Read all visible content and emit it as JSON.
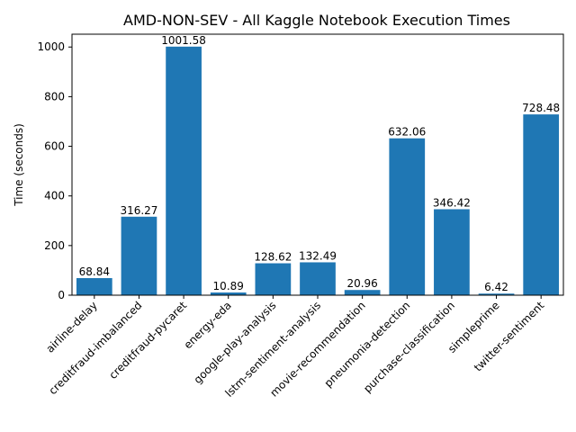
{
  "chart_data": {
    "type": "bar",
    "title": "AMD-NON-SEV - All Kaggle Notebook Execution Times",
    "xlabel": "",
    "ylabel": "Time (seconds)",
    "ylim": [
      0,
      1051.66
    ],
    "yticks": [
      0,
      200,
      400,
      600,
      800,
      1000
    ],
    "grid": false,
    "bar_color": "#1f77b4",
    "categories": [
      "airline-delay",
      "creditfraud-imbalanced",
      "creditfraud-pycaret",
      "energy-eda",
      "google-play-analysis",
      "lstm-sentiment-analysis",
      "movie-recommendation",
      "pneumonia-detection",
      "purchase-classification",
      "simpleprime",
      "twitter-sentiment"
    ],
    "values": [
      68.84,
      316.27,
      1001.58,
      10.89,
      128.62,
      132.49,
      20.96,
      632.06,
      346.42,
      6.42,
      728.48
    ],
    "value_labels": [
      "68.84",
      "316.27",
      "1001.58",
      "10.89",
      "128.62",
      "132.49",
      "20.96",
      "632.06",
      "346.42",
      "6.42",
      "728.48"
    ]
  }
}
